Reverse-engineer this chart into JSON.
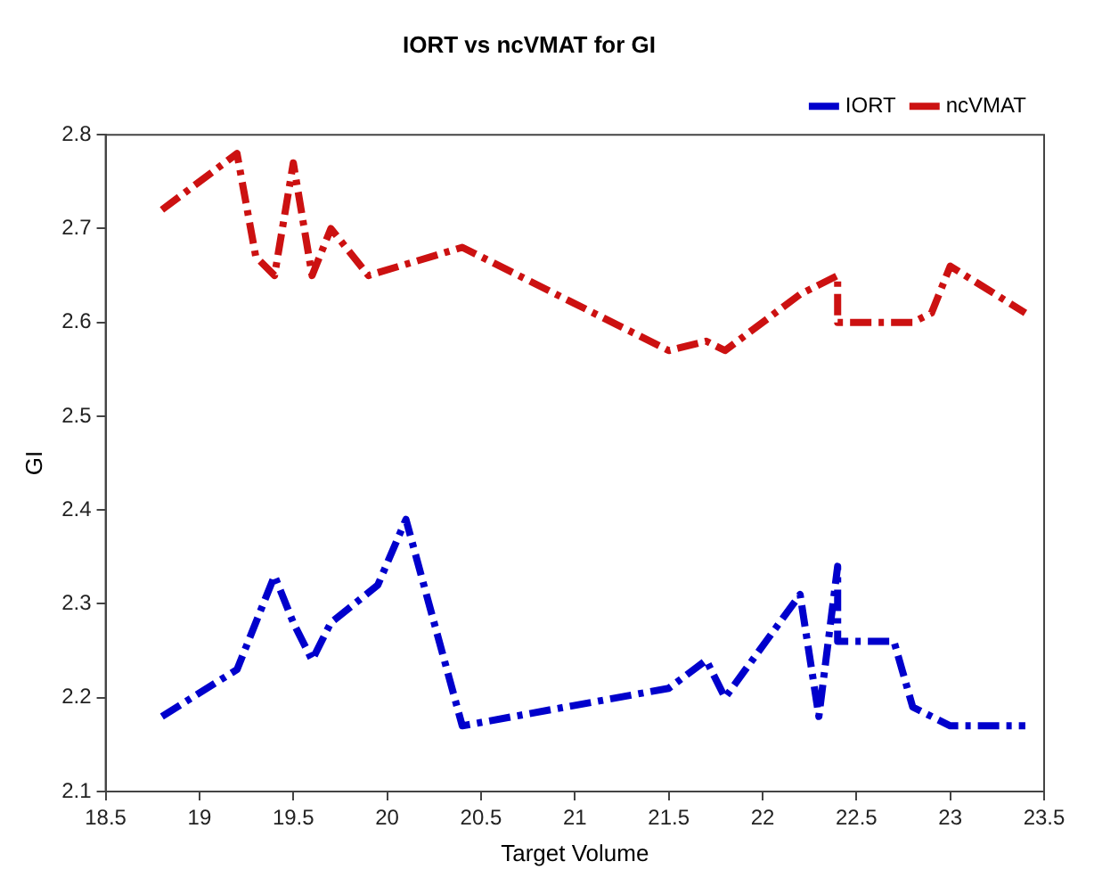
{
  "chart_data": {
    "type": "line",
    "title": "IORT vs ncVMAT for GI",
    "xlabel": "Target Volume",
    "ylabel": "GI",
    "xlim": [
      18.5,
      23.5
    ],
    "xticks": [
      18.5,
      19,
      19.5,
      20,
      20.5,
      21,
      21.5,
      22,
      22.5,
      23,
      23.5
    ],
    "ylim": [
      2.1,
      2.8
    ],
    "yticks": [
      2.1,
      2.2,
      2.3,
      2.4,
      2.5,
      2.6,
      2.7,
      2.8
    ],
    "grid": false,
    "legend": "top right",
    "marker": "none",
    "line_style": "dashed",
    "series": [
      {
        "name": "IORT",
        "color": "#0000cc",
        "x": [
          18.8,
          19.2,
          19.4,
          19.5,
          19.6,
          19.7,
          19.95,
          20.1,
          20.4,
          21.5,
          21.7,
          21.8,
          22.2,
          22.3,
          22.4,
          22.4,
          22.7,
          22.8,
          23.0,
          23.4
        ],
        "values": [
          2.18,
          2.23,
          2.33,
          2.28,
          2.24,
          2.28,
          2.32,
          2.39,
          2.17,
          2.21,
          2.24,
          2.2,
          2.31,
          2.18,
          2.34,
          2.26,
          2.26,
          2.19,
          2.17,
          2.17
        ]
      },
      {
        "name": "ncVMAT",
        "color": "#cc1111",
        "x": [
          18.8,
          19.2,
          19.3,
          19.4,
          19.5,
          19.6,
          19.7,
          19.9,
          20.4,
          21.5,
          21.7,
          21.8,
          22.2,
          22.4,
          22.4,
          22.8,
          22.9,
          23.0,
          23.4
        ],
        "values": [
          2.72,
          2.78,
          2.67,
          2.65,
          2.77,
          2.65,
          2.7,
          2.65,
          2.68,
          2.57,
          2.58,
          2.57,
          2.63,
          2.65,
          2.6,
          2.6,
          2.61,
          2.66,
          2.61
        ]
      }
    ]
  }
}
